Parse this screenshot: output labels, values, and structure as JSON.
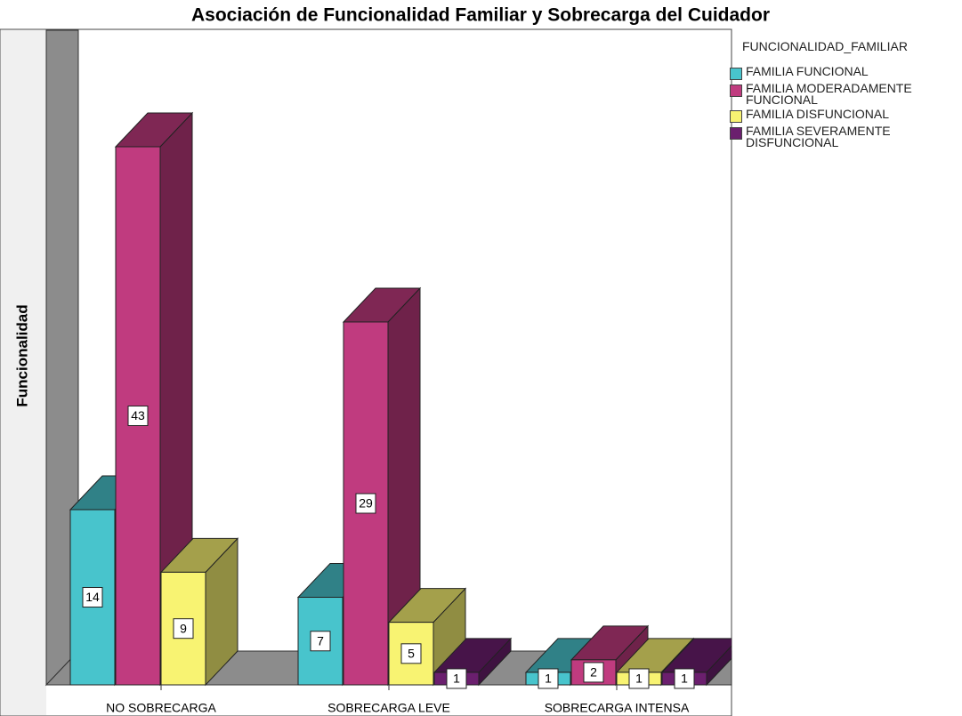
{
  "chart_data": {
    "type": "bar3d",
    "title": "Asociación de Funcionalidad Familiar y Sobrecarga del Cuidador",
    "ylabel": "Funcionalidad",
    "legend_title": "FUNCIONALIDAD_FAMILIAR",
    "legend": "right",
    "categories": [
      "NO SOBRECARGA",
      "SOBRECARGA LEVE",
      "SOBRECARGA INTENSA"
    ],
    "series": [
      {
        "name": "FAMILIA FUNCIONAL",
        "color": "#48c4cc",
        "values": [
          14,
          7,
          1
        ]
      },
      {
        "name": "FAMILIA MODERADAMENTE FUNCIONAL",
        "color": "#c03b7f",
        "values": [
          43,
          29,
          2
        ]
      },
      {
        "name": "FAMILIA DISFUNCIONAL",
        "color": "#f8f372",
        "values": [
          9,
          5,
          1
        ]
      },
      {
        "name": "FAMILIA SEVERAMENTE DISFUNCIONAL",
        "color": "#6b1f6e",
        "values": [
          null,
          1,
          1
        ]
      }
    ]
  }
}
